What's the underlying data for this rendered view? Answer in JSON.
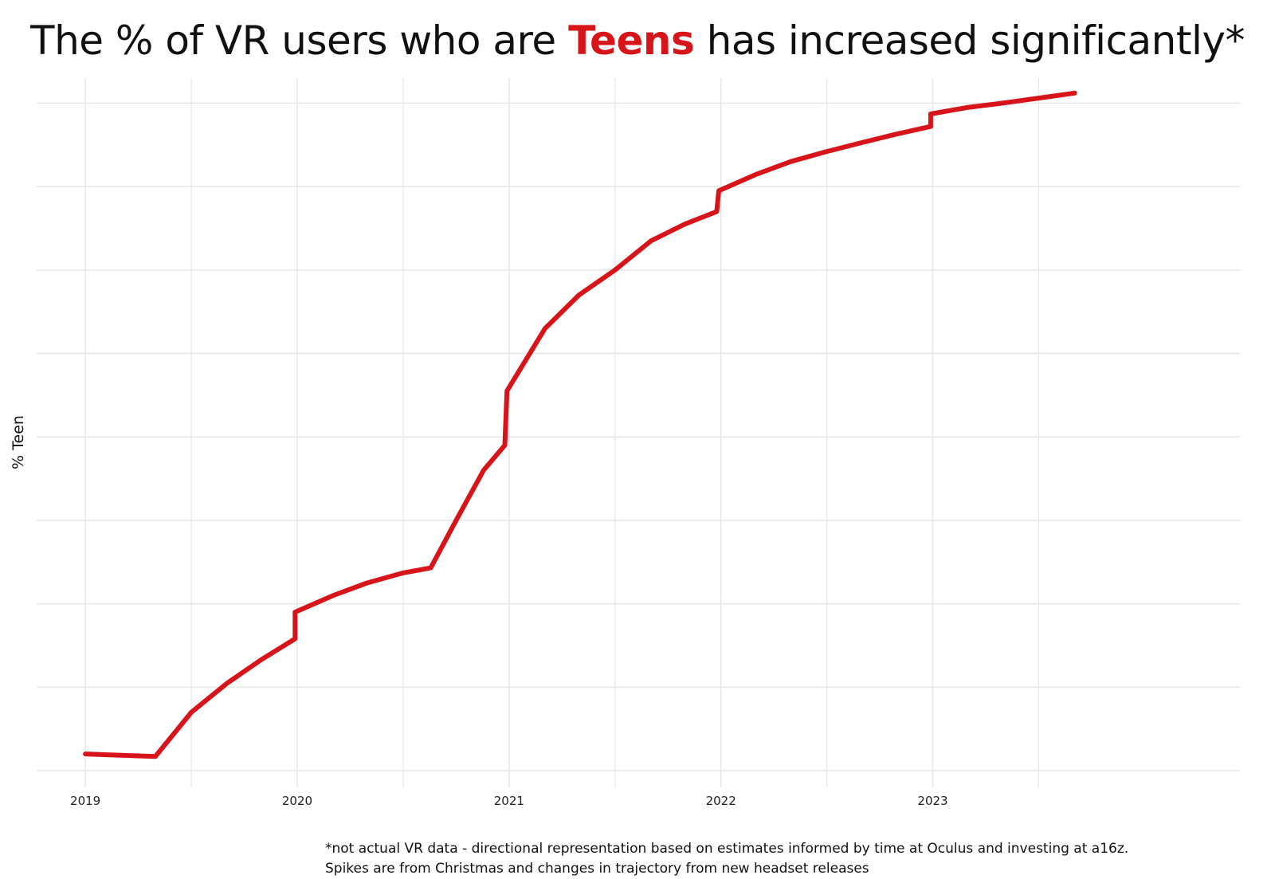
{
  "title": {
    "before": "The % of VR users who are ",
    "highlight": "Teens",
    "after": " has increased significantly*"
  },
  "colors": {
    "line": "#d8141b",
    "highlight": "#d8141b",
    "grid": "#e6e6e6"
  },
  "footnote": {
    "line1": "*not actual VR data - directional representation based on estimates informed by time at Oculus and investing at a16z.",
    "line2": "Spikes are from Christmas and changes in trajectory from new headset releases"
  },
  "chart_data": {
    "type": "line",
    "title": "The % of VR users who are Teens has increased significantly*",
    "xlabel": "",
    "ylabel": "% Teen",
    "x_tick_labels": [
      "2019",
      "2020",
      "2021",
      "2022",
      "2023"
    ],
    "xlim": [
      2018.77,
      2024.45
    ],
    "ylim": [
      -0.2,
      8.3
    ],
    "y_tick_labels_shown": false,
    "grid": true,
    "legend": "none",
    "series": [
      {
        "x": [
          2019.0,
          2019.33,
          2019.5,
          2019.67,
          2019.83,
          2019.99,
          2019.99,
          2020.17,
          2020.33,
          2020.5,
          2020.63,
          2020.75,
          2020.88,
          2020.98,
          2020.99,
          2021.17,
          2021.33,
          2021.5,
          2021.67,
          2021.83,
          2021.98,
          2021.99,
          2022.17,
          2022.33,
          2022.5,
          2022.67,
          2022.83,
          2022.99,
          2022.99,
          2023.17,
          2023.33,
          2023.5,
          2023.67
        ],
        "y": [
          0.2,
          0.17,
          0.7,
          1.05,
          1.33,
          1.58,
          1.9,
          2.1,
          2.25,
          2.37,
          2.43,
          3.0,
          3.6,
          3.9,
          4.55,
          5.3,
          5.7,
          6.0,
          6.35,
          6.55,
          6.7,
          6.95,
          7.15,
          7.3,
          7.42,
          7.53,
          7.63,
          7.72,
          7.87,
          7.95,
          8.0,
          8.06,
          8.12
        ]
      }
    ]
  }
}
